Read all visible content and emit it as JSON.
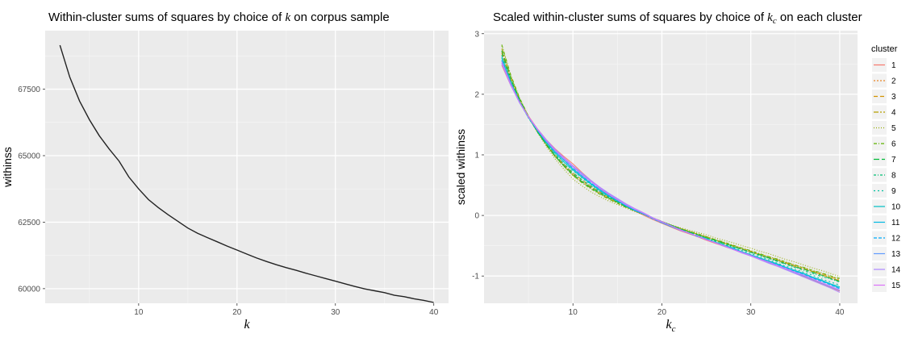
{
  "chart_data": [
    {
      "type": "line",
      "title_text": "Within-cluster sums of squares by choice of ",
      "title_var": "k",
      "title_suffix": " on corpus sample",
      "xlabel": "k",
      "ylabel": "withinss",
      "xlim": [
        0.5,
        41.5
      ],
      "ylim": [
        59450,
        69700
      ],
      "x_ticks": [
        10,
        20,
        30,
        40
      ],
      "y_ticks": [
        60000,
        62500,
        65000,
        67500
      ],
      "grid": true,
      "series": [
        {
          "color": "#222222",
          "x": [
            2,
            3,
            4,
            5,
            6,
            7,
            8,
            9,
            10,
            11,
            12,
            13,
            14,
            15,
            16,
            17,
            18,
            19,
            20,
            21,
            22,
            23,
            24,
            25,
            26,
            27,
            28,
            29,
            30,
            31,
            32,
            33,
            34,
            35,
            36,
            37,
            38,
            39,
            40
          ],
          "y": [
            69150,
            67950,
            67050,
            66350,
            65750,
            65250,
            64800,
            64200,
            63750,
            63350,
            63050,
            62780,
            62530,
            62280,
            62080,
            61920,
            61760,
            61600,
            61450,
            61300,
            61150,
            61020,
            60900,
            60790,
            60690,
            60580,
            60480,
            60380,
            60280,
            60180,
            60080,
            59990,
            59920,
            59850,
            59750,
            59700,
            59620,
            59560,
            59480
          ]
        }
      ]
    },
    {
      "type": "line",
      "title_text": "Scaled within-cluster sums of squares by choice of ",
      "title_var": "k",
      "title_var_sub": "c",
      "title_suffix": " on each cluster",
      "xlabel": "k",
      "xlabel_sub": "c",
      "ylabel": "scaled withinss",
      "xlim": [
        0,
        42
      ],
      "ylim": [
        -1.45,
        3.05
      ],
      "x_ticks": [
        10,
        20,
        30,
        40
      ],
      "y_ticks": [
        -1,
        0,
        1,
        2,
        3
      ],
      "grid": true,
      "legend": {
        "title": "cluster",
        "position": "right",
        "entries": [
          {
            "label": "1",
            "color": "#F8766D",
            "dash": ""
          },
          {
            "label": "2",
            "color": "#E88526",
            "dash": "2,2"
          },
          {
            "label": "3",
            "color": "#D39200",
            "dash": "5,3"
          },
          {
            "label": "4",
            "color": "#B79F00",
            "dash": "6,2,2,2"
          },
          {
            "label": "5",
            "color": "#93AA00",
            "dash": "1,2"
          },
          {
            "label": "6",
            "color": "#5EB300",
            "dash": "4,2,1,2"
          },
          {
            "label": "7",
            "color": "#00BA38",
            "dash": "7,3"
          },
          {
            "label": "8",
            "color": "#00BF74",
            "dash": "3,2,1,2"
          },
          {
            "label": "9",
            "color": "#00C19F",
            "dash": "2,3"
          },
          {
            "label": "10",
            "color": "#00BFC4",
            "dash": ""
          },
          {
            "label": "11",
            "color": "#00B9E3",
            "dash": ""
          },
          {
            "label": "12",
            "color": "#00ADFA",
            "dash": "4,2"
          },
          {
            "label": "13",
            "color": "#619CFF",
            "dash": ""
          },
          {
            "label": "14",
            "color": "#AE87FF",
            "dash": ""
          },
          {
            "label": "15",
            "color": "#DB72FB",
            "dash": ""
          }
        ]
      },
      "x": [
        2,
        3,
        4,
        5,
        6,
        7,
        8,
        9,
        10,
        11,
        12,
        13,
        14,
        15,
        16,
        17,
        18,
        19,
        20,
        21,
        22,
        23,
        24,
        25,
        26,
        27,
        28,
        29,
        30,
        31,
        32,
        33,
        34,
        35,
        36,
        37,
        38,
        39,
        40
      ],
      "base_curve": [
        2.6,
        2.2,
        1.88,
        1.62,
        1.4,
        1.2,
        1.02,
        0.87,
        0.73,
        0.61,
        0.5,
        0.4,
        0.31,
        0.23,
        0.15,
        0.08,
        0.02,
        -0.05,
        -0.11,
        -0.17,
        -0.23,
        -0.28,
        -0.33,
        -0.38,
        -0.43,
        -0.48,
        -0.53,
        -0.58,
        -0.63,
        -0.68,
        -0.73,
        -0.78,
        -0.83,
        -0.88,
        -0.93,
        -0.98,
        -1.03,
        -1.08,
        -1.13
      ],
      "series_offsets": [
        [
          -0.12,
          -0.05,
          0,
          0.02,
          0.03,
          0.05,
          0.08,
          0.1,
          0.12,
          0.1,
          0.08,
          0.05,
          0.03,
          0.02,
          0,
          -0.01,
          -0.02,
          -0.02,
          -0.02,
          -0.02,
          -0.02,
          -0.02,
          -0.02,
          -0.03,
          -0.03,
          -0.03,
          -0.03,
          -0.03,
          -0.04,
          -0.04,
          -0.05,
          -0.05,
          -0.06,
          -0.07,
          -0.08,
          -0.09,
          -0.1,
          -0.11,
          -0.12
        ],
        [
          0.1,
          0.05,
          0.02,
          0,
          -0.02,
          -0.03,
          -0.04,
          -0.04,
          -0.05,
          -0.04,
          -0.03,
          -0.02,
          -0.02,
          -0.01,
          -0.01,
          0,
          0,
          0,
          0.01,
          0.01,
          0.01,
          0.01,
          0.01,
          0.02,
          0.02,
          0.02,
          0.02,
          0.02,
          0.03,
          0.03,
          0.03,
          0.04,
          0.04,
          0.04,
          0.05,
          0.05,
          0.05,
          0.05,
          0.05
        ],
        [
          0.08,
          0.03,
          0.01,
          0,
          -0.01,
          -0.02,
          -0.02,
          -0.03,
          -0.03,
          -0.02,
          -0.02,
          -0.01,
          -0.01,
          0,
          0,
          0,
          0.01,
          0.01,
          0.01,
          0.01,
          0.02,
          0.02,
          0.02,
          0.02,
          0.02,
          0.02,
          0.03,
          0.03,
          0.03,
          0.03,
          0.03,
          0.04,
          0.04,
          0.04,
          0.04,
          0.05,
          0.05,
          0.05,
          0.05
        ],
        [
          0.15,
          0.08,
          0.04,
          0.01,
          -0.02,
          -0.04,
          -0.05,
          -0.06,
          -0.07,
          -0.06,
          -0.05,
          -0.04,
          -0.03,
          -0.02,
          -0.01,
          0,
          0,
          0.01,
          0.01,
          0.01,
          0.02,
          0.02,
          0.02,
          0.03,
          0.03,
          0.03,
          0.03,
          0.04,
          0.04,
          0.04,
          0.05,
          0.05,
          0.05,
          0.06,
          0.06,
          0.06,
          0.07,
          0.07,
          0.07
        ],
        [
          0.2,
          0.1,
          0.05,
          0.01,
          -0.03,
          -0.06,
          -0.09,
          -0.11,
          -0.13,
          -0.12,
          -0.11,
          -0.09,
          -0.07,
          -0.05,
          -0.03,
          -0.02,
          -0.01,
          0,
          0.01,
          0.02,
          0.03,
          0.04,
          0.05,
          0.06,
          0.06,
          0.07,
          0.08,
          0.08,
          0.09,
          0.09,
          0.1,
          0.1,
          0.1,
          0.11,
          0.11,
          0.11,
          0.12,
          0.12,
          0.12
        ],
        [
          0.22,
          0.12,
          0.06,
          0.02,
          -0.01,
          -0.03,
          -0.05,
          -0.06,
          -0.07,
          -0.07,
          -0.06,
          -0.05,
          -0.04,
          -0.03,
          -0.02,
          -0.01,
          0,
          0,
          0.01,
          0.01,
          0.02,
          0.02,
          0.03,
          0.03,
          0.03,
          0.04,
          0.04,
          0.04,
          0.05,
          0.05,
          0.05,
          0.06,
          0.06,
          0.06,
          0.07,
          0.07,
          0.08,
          0.08,
          0.09
        ],
        [
          0.12,
          0.06,
          0.03,
          0,
          -0.02,
          -0.03,
          -0.04,
          -0.05,
          -0.05,
          -0.05,
          -0.04,
          -0.03,
          -0.02,
          -0.01,
          -0.01,
          0,
          0,
          0,
          0,
          0.01,
          0.01,
          0.01,
          0.01,
          0.01,
          0.02,
          0.02,
          0.02,
          0.02,
          0.02,
          0.03,
          0.03,
          0.03,
          0.03,
          0.03,
          0.04,
          0.04,
          0.04,
          0.04,
          0.04
        ],
        [
          0.05,
          0.02,
          0,
          -0.01,
          -0.01,
          -0.02,
          -0.02,
          -0.02,
          -0.02,
          -0.02,
          -0.01,
          -0.01,
          0,
          0,
          0,
          0,
          0,
          0,
          0.01,
          0.01,
          0.01,
          0.01,
          0.01,
          0.01,
          0.01,
          0.01,
          0.01,
          0.02,
          0.02,
          0.02,
          0.02,
          0.02,
          0.02,
          0.02,
          0.02,
          0.02,
          0.02,
          0.03,
          0.03
        ],
        [
          0,
          -0.01,
          -0.01,
          -0.01,
          0,
          0,
          0,
          0.01,
          0.01,
          0.01,
          0.01,
          0.01,
          0,
          0,
          0,
          0,
          0,
          0,
          0,
          0,
          0,
          0,
          0,
          0,
          0,
          0,
          0,
          0,
          0,
          0,
          0,
          -0.01,
          -0.01,
          -0.01,
          -0.01,
          -0.01,
          -0.02,
          -0.02,
          -0.02
        ],
        [
          0.02,
          0.01,
          0,
          0,
          0,
          0,
          0.01,
          0.01,
          0.02,
          0.02,
          0.02,
          0.01,
          0.01,
          0.01,
          0,
          0,
          0,
          0,
          0,
          0,
          -0.01,
          -0.01,
          -0.01,
          -0.01,
          -0.01,
          -0.01,
          -0.01,
          -0.02,
          -0.02,
          -0.02,
          -0.02,
          -0.02,
          -0.03,
          -0.03,
          -0.03,
          -0.04,
          -0.04,
          -0.05,
          -0.05
        ],
        [
          -0.03,
          -0.02,
          -0.01,
          0,
          0.01,
          0.02,
          0.03,
          0.04,
          0.04,
          0.04,
          0.03,
          0.03,
          0.02,
          0.01,
          0.01,
          0,
          0,
          0,
          -0.01,
          -0.01,
          -0.01,
          -0.01,
          -0.01,
          -0.01,
          -0.02,
          -0.02,
          -0.02,
          -0.02,
          -0.02,
          -0.03,
          -0.03,
          -0.03,
          -0.03,
          -0.04,
          -0.04,
          -0.05,
          -0.05,
          -0.06,
          -0.07
        ],
        [
          -0.05,
          -0.03,
          -0.02,
          0,
          0.01,
          0.03,
          0.04,
          0.05,
          0.05,
          0.05,
          0.04,
          0.03,
          0.02,
          0.02,
          0.01,
          0,
          0,
          -0.01,
          -0.01,
          -0.01,
          -0.01,
          -0.01,
          -0.02,
          -0.02,
          -0.02,
          -0.02,
          -0.02,
          -0.03,
          -0.03,
          -0.03,
          -0.04,
          -0.04,
          -0.04,
          -0.05,
          -0.05,
          -0.06,
          -0.06,
          -0.07,
          -0.08
        ],
        [
          -0.08,
          -0.04,
          -0.02,
          0,
          0.02,
          0.04,
          0.06,
          0.07,
          0.08,
          0.08,
          0.07,
          0.06,
          0.05,
          0.04,
          0.03,
          0.02,
          0.01,
          0.01,
          0,
          0,
          -0.01,
          -0.01,
          -0.01,
          -0.02,
          -0.02,
          -0.02,
          -0.03,
          -0.03,
          -0.04,
          -0.04,
          -0.05,
          -0.05,
          -0.06,
          -0.07,
          -0.07,
          -0.08,
          -0.09,
          -0.1,
          -0.11
        ],
        [
          -0.1,
          -0.05,
          -0.02,
          0.01,
          0.03,
          0.05,
          0.07,
          0.08,
          0.09,
          0.09,
          0.08,
          0.07,
          0.06,
          0.05,
          0.04,
          0.03,
          0.02,
          0.01,
          0.01,
          0,
          0,
          -0.01,
          -0.01,
          -0.02,
          -0.02,
          -0.03,
          -0.03,
          -0.04,
          -0.04,
          -0.05,
          -0.06,
          -0.06,
          -0.07,
          -0.08,
          -0.09,
          -0.1,
          -0.11,
          -0.12,
          -0.14
        ],
        [
          -0.06,
          -0.03,
          -0.01,
          0.01,
          0.02,
          0.03,
          0.05,
          0.06,
          0.07,
          0.06,
          0.06,
          0.05,
          0.04,
          0.03,
          0.02,
          0.02,
          0.01,
          0,
          0,
          0,
          -0.01,
          -0.01,
          -0.01,
          -0.02,
          -0.02,
          -0.02,
          -0.03,
          -0.03,
          -0.03,
          -0.04,
          -0.04,
          -0.05,
          -0.05,
          -0.06,
          -0.06,
          -0.07,
          -0.08,
          -0.09,
          -0.1
        ]
      ]
    }
  ]
}
